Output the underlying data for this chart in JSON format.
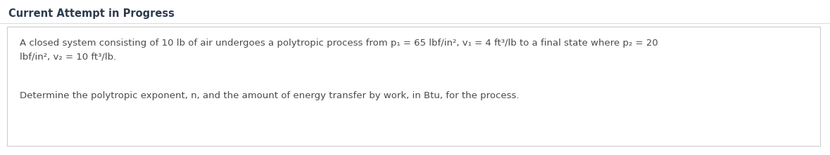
{
  "header": "Current Attempt in Progress",
  "line1": "A closed system consisting of 10 lb of air undergoes a polytropic process from p₁ = 65 lbf/in², v₁ = 4 ft³/lb to a final state where p₂ = 20",
  "line2": "lbf/in², v₂ = 10 ft³/lb.",
  "line3": "Determine the polytropic exponent, n, and the amount of energy transfer by work, in Btu, for the process.",
  "bg_color": "#ffffff",
  "header_color": "#2d3b4e",
  "text_color": "#4a4a4a",
  "box_border_color": "#cccccc",
  "separator_color": "#dddddd",
  "header_fontsize": 10.5,
  "body_fontsize": 9.5
}
